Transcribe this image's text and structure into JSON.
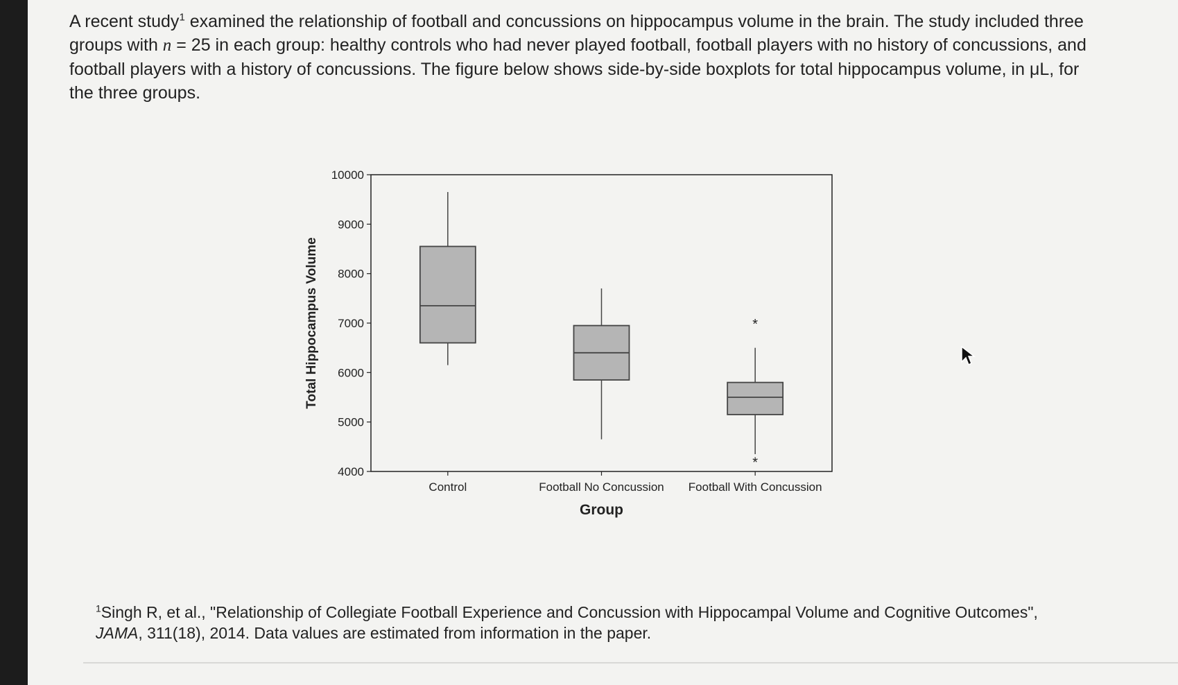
{
  "intro": {
    "part1": "A recent study",
    "ref": "1",
    "part2": " examined the relationship of football and concussions on hippocampus volume in the brain. The study included three groups with ",
    "n_symbol": "n",
    "part3": " = 25 in each group: healthy controls who had never played football, football players with no history of concussions, and football players with a history of concussions. The figure below shows side-by-side boxplots for total hippocampus volume, in μL, for the three groups."
  },
  "chart_data": {
    "type": "boxplot",
    "xlabel": "Group",
    "ylabel": "Total Hippocampus Volume",
    "ylim": [
      4000,
      10000
    ],
    "yticks": [
      4000,
      5000,
      6000,
      7000,
      8000,
      9000,
      10000
    ],
    "ytick_labels": [
      "4000",
      "5000",
      "6000",
      "7000",
      "8000",
      "9000",
      "10000"
    ],
    "grid": false,
    "categories": [
      "Control",
      "Football No Concussion",
      "Football With Concussion"
    ],
    "boxes": [
      {
        "category": "Control",
        "whisker_low": 6150,
        "q1": 6600,
        "median": 7350,
        "q3": 8550,
        "whisker_high": 9650,
        "outliers": []
      },
      {
        "category": "Football No Concussion",
        "whisker_low": 4650,
        "q1": 5850,
        "median": 6400,
        "q3": 6950,
        "whisker_high": 7700,
        "outliers": []
      },
      {
        "category": "Football With Concussion",
        "whisker_low": 4350,
        "q1": 5150,
        "median": 5500,
        "q3": 5800,
        "whisker_high": 6500,
        "outliers": [
          7000,
          4200
        ]
      }
    ],
    "colors": {
      "box_fill": "#b5b5b5",
      "box_stroke": "#444444",
      "axis": "#222222"
    }
  },
  "footnote": {
    "ref": "1",
    "line1": "Singh R, et al., \"Relationship of Collegiate Football Experience and Concussion with Hippocampal Volume and Cognitive Outcomes\",",
    "journal": "JAMA",
    "line2": ", 311(18), 2014. Data values are estimated from information in the paper."
  },
  "icons": {
    "cursor": "mouse-pointer-icon"
  }
}
